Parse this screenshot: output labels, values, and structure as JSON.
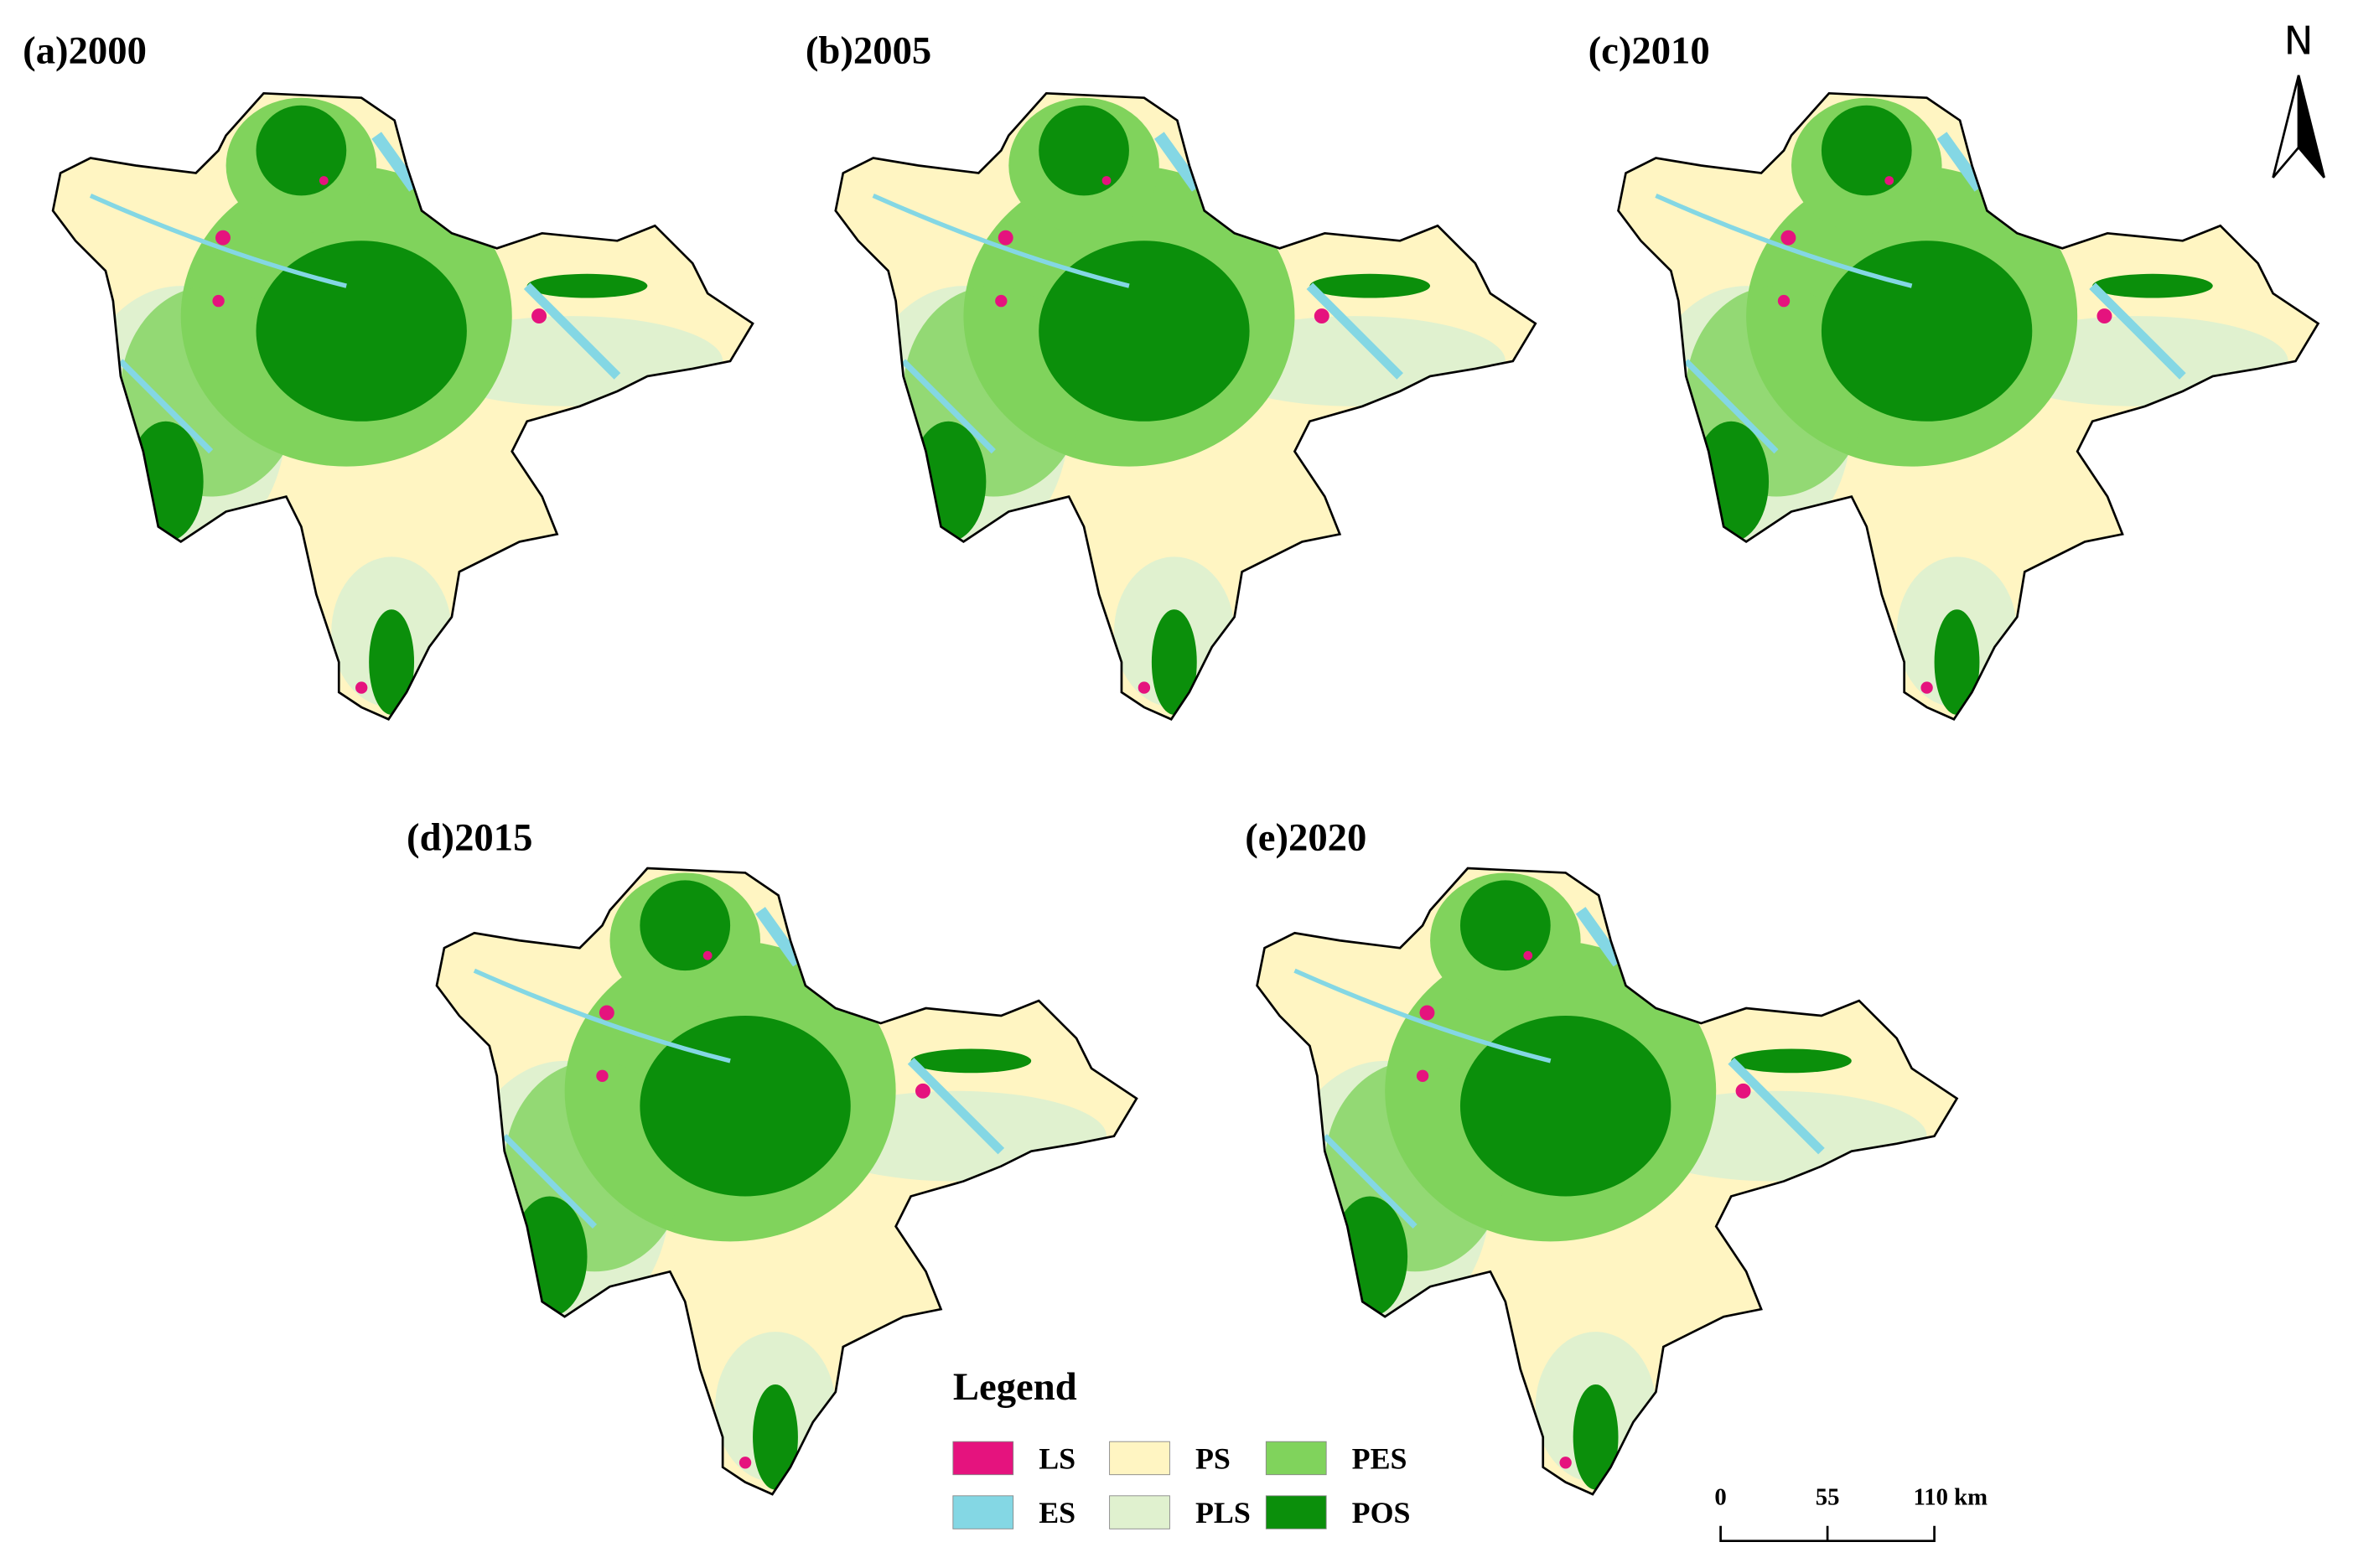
{
  "panels": [
    {
      "label": "(a)2000"
    },
    {
      "label": "(b)2005"
    },
    {
      "label": "(c)2010"
    },
    {
      "label": "(d)2015"
    },
    {
      "label": "(e)2020"
    }
  ],
  "north": "N",
  "legend": {
    "title": "Legend",
    "items": [
      {
        "label": "LS",
        "color": "#e5137e"
      },
      {
        "label": "PS",
        "color": "#fff5c2"
      },
      {
        "label": "PES",
        "color": "#80d35c"
      },
      {
        "label": "ES",
        "color": "#84d7e4"
      },
      {
        "label": "PLS",
        "color": "#e0f1cf"
      },
      {
        "label": "POS",
        "color": "#0b8f0b"
      }
    ]
  },
  "scale_bar": {
    "labels": [
      "0",
      "55",
      "110 km"
    ]
  }
}
